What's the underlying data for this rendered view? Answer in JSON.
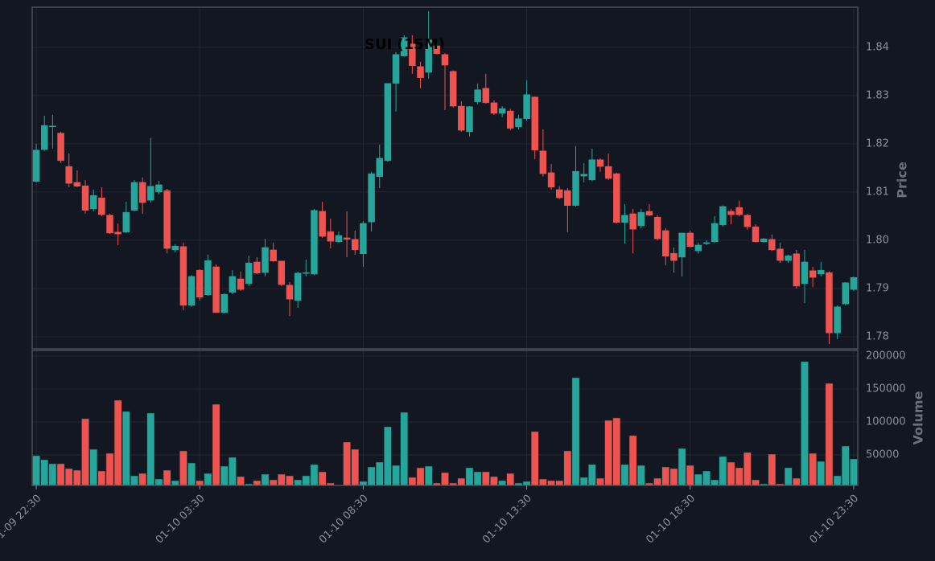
{
  "chart_data": {
    "type": "candlestick",
    "title": "SUI (15M)",
    "ylabel": "Price",
    "categories": [
      "01-09 22:30",
      null,
      null,
      null,
      null,
      null,
      null,
      null,
      null,
      null,
      null,
      null,
      null,
      null,
      null,
      null,
      null,
      null,
      null,
      null,
      "01-10 03:30",
      null,
      null,
      null,
      null,
      null,
      null,
      null,
      null,
      null,
      null,
      null,
      null,
      null,
      null,
      null,
      null,
      null,
      null,
      null,
      "01-10 08:30",
      null,
      null,
      null,
      null,
      null,
      null,
      null,
      null,
      null,
      null,
      null,
      null,
      null,
      null,
      null,
      null,
      null,
      null,
      null,
      "01-10 13:30",
      null,
      null,
      null,
      null,
      null,
      null,
      null,
      null,
      null,
      null,
      null,
      null,
      null,
      null,
      null,
      null,
      null,
      null,
      null,
      "01-10 18:30",
      null,
      null,
      null,
      null,
      null,
      null,
      null,
      null,
      null,
      null,
      null,
      null,
      null,
      null,
      null,
      null,
      null,
      null,
      null,
      "01-10 23:30"
    ],
    "up_color": "#26a69a",
    "down_color": "#ef5350",
    "grid": true,
    "open": [
      1.8122,
      1.8188,
      1.8235,
      1.8222,
      1.8153,
      1.812,
      1.8113,
      1.8065,
      1.8088,
      1.8052,
      1.8017,
      1.8017,
      1.8062,
      1.812,
      1.8083,
      1.81,
      1.8103,
      1.798,
      1.7987,
      1.7865,
      1.7938,
      1.7887,
      1.7945,
      1.785,
      1.7892,
      1.792,
      1.791,
      1.7955,
      1.7933,
      1.798,
      1.7957,
      1.7907,
      1.7875,
      1.7932,
      1.793,
      1.806,
      1.8018,
      1.7997,
      1.8005,
      1.8002,
      1.7972,
      1.8038,
      1.8132,
      1.8165,
      1.8325,
      1.8382,
      1.8407,
      1.836,
      1.8348,
      1.8403,
      1.8385,
      1.835,
      1.8278,
      1.8225,
      1.8287,
      1.8315,
      1.8285,
      1.8263,
      1.8268,
      1.8235,
      1.8252,
      1.8297,
      1.8185,
      1.814,
      1.8105,
      1.8103,
      1.8072,
      1.8133,
      1.8125,
      1.8167,
      1.8153,
      1.8138,
      1.8037,
      1.8055,
      1.803,
      1.806,
      1.8048,
      1.802,
      1.7973,
      1.7965,
      1.8015,
      1.7978,
      1.7993,
      1.7997,
      1.8032,
      1.806,
      1.8068,
      1.8052,
      1.8028,
      1.7997,
      1.8002,
      1.7982,
      1.7958,
      1.7972,
      1.791,
      1.7937,
      1.793,
      1.7933,
      1.7808,
      1.7868,
      1.7898
    ],
    "high": [
      1.82,
      1.8258,
      1.826,
      1.8225,
      1.818,
      1.8145,
      1.8125,
      1.8105,
      1.811,
      1.8055,
      1.8035,
      1.808,
      1.8125,
      1.813,
      1.8212,
      1.8123,
      1.8107,
      1.7992,
      1.7995,
      1.7928,
      1.794,
      1.797,
      1.795,
      1.789,
      1.7938,
      1.7935,
      1.7968,
      1.7965,
      1.8003,
      1.7995,
      1.7957,
      1.7913,
      1.7935,
      1.796,
      1.8065,
      1.808,
      1.8045,
      1.8018,
      1.806,
      1.802,
      1.804,
      1.8142,
      1.8198,
      1.8325,
      1.839,
      1.8425,
      1.8425,
      1.837,
      1.8475,
      1.8408,
      1.8388,
      1.8352,
      1.8288,
      1.8278,
      1.8325,
      1.8345,
      1.829,
      1.8278,
      1.8272,
      1.826,
      1.8332,
      1.8298,
      1.823,
      1.8158,
      1.8112,
      1.8108,
      1.8195,
      1.816,
      1.819,
      1.817,
      1.818,
      1.814,
      1.8075,
      1.8065,
      1.8065,
      1.8075,
      1.8052,
      1.8025,
      1.7985,
      1.8015,
      1.802,
      1.7995,
      1.8,
      1.805,
      1.8072,
      1.8065,
      1.8082,
      1.8055,
      1.8033,
      1.8005,
      1.8012,
      1.7995,
      1.797,
      1.798,
      1.798,
      1.7945,
      1.7955,
      1.7935,
      1.7865,
      1.7913,
      1.7925
    ],
    "low": [
      1.812,
      1.8185,
      1.819,
      1.816,
      1.811,
      1.811,
      1.8055,
      1.806,
      1.805,
      1.8013,
      1.799,
      1.8015,
      1.806,
      1.8055,
      1.8078,
      1.8095,
      1.7973,
      1.7975,
      1.7855,
      1.7862,
      1.7875,
      1.7885,
      1.785,
      1.7848,
      1.7888,
      1.7895,
      1.7905,
      1.793,
      1.7925,
      1.7955,
      1.7905,
      1.7843,
      1.786,
      1.7925,
      1.7928,
      1.8005,
      1.7983,
      1.7995,
      1.7965,
      1.797,
      1.7945,
      1.8018,
      1.8108,
      1.8163,
      1.8267,
      1.838,
      1.8345,
      1.8315,
      1.8335,
      1.8385,
      1.827,
      1.8275,
      1.8225,
      1.8215,
      1.8282,
      1.8283,
      1.826,
      1.8255,
      1.8228,
      1.823,
      1.8248,
      1.8168,
      1.8132,
      1.8105,
      1.8085,
      1.8017,
      1.807,
      1.812,
      1.8122,
      1.8142,
      1.8125,
      1.8035,
      1.7993,
      1.7973,
      1.8025,
      1.805,
      1.8,
      1.7948,
      1.7933,
      1.7925,
      1.7985,
      1.7972,
      1.799,
      1.7995,
      1.8028,
      1.8033,
      1.805,
      1.8022,
      1.7995,
      1.7995,
      1.7978,
      1.7953,
      1.7953,
      1.79,
      1.787,
      1.7903,
      1.7925,
      1.7785,
      1.7795,
      1.7865,
      1.7895
    ],
    "close": [
      1.8187,
      1.8238,
      1.8237,
      1.8165,
      1.8118,
      1.8112,
      1.8062,
      1.8093,
      1.8053,
      1.8015,
      1.8013,
      1.8058,
      1.812,
      1.8078,
      1.8112,
      1.8115,
      1.7983,
      1.7988,
      1.7865,
      1.7925,
      1.7882,
      1.7958,
      1.785,
      1.7888,
      1.7925,
      1.7898,
      1.7953,
      1.7932,
      1.7985,
      1.7957,
      1.7908,
      1.7878,
      1.7932,
      1.7933,
      1.8062,
      1.8008,
      1.7998,
      1.801,
      1.8002,
      1.798,
      1.8035,
      1.8138,
      1.817,
      1.8325,
      1.8385,
      1.842,
      1.8362,
      1.8337,
      1.8415,
      1.8387,
      1.8363,
      1.8278,
      1.8228,
      1.8277,
      1.8312,
      1.8285,
      1.8263,
      1.8273,
      1.8232,
      1.8252,
      1.8302,
      1.8187,
      1.8138,
      1.811,
      1.8088,
      1.8072,
      1.8143,
      1.8137,
      1.8167,
      1.8153,
      1.8128,
      1.8037,
      1.8052,
      1.8023,
      1.8058,
      1.8052,
      1.8003,
      1.7967,
      1.7958,
      1.8015,
      1.7987,
      1.799,
      1.7995,
      1.8035,
      1.807,
      1.8053,
      1.8053,
      1.8028,
      1.7997,
      1.8003,
      1.798,
      1.7958,
      1.7968,
      1.7905,
      1.7955,
      1.7923,
      1.7938,
      1.7808,
      1.7862,
      1.7912,
      1.7923
    ],
    "ylim": [
      1.7775,
      1.8483
    ],
    "yticks": [
      1.78,
      1.79,
      {
        "value": 1.8,
        "label": "1.80"
      },
      1.81,
      1.82,
      1.83,
      1.84
    ],
    "volume": {
      "ylabel": "Volume",
      "ylim": [
        3700,
        208500
      ],
      "yticks": [
        50000,
        100000,
        150000,
        200000
      ],
      "values": [
        48800,
        42700,
        36600,
        36600,
        29300,
        26800,
        104900,
        58500,
        25600,
        52400,
        132900,
        115900,
        18300,
        21900,
        113400,
        13400,
        26800,
        11000,
        56100,
        37800,
        11000,
        21900,
        126800,
        32900,
        46300,
        17100,
        6100,
        11000,
        20700,
        12200,
        20700,
        18300,
        12200,
        18300,
        35400,
        24400,
        7300,
        3800,
        69500,
        58500,
        9800,
        31700,
        39000,
        92700,
        34100,
        114600,
        15900,
        30500,
        32900,
        7300,
        23200,
        7300,
        14600,
        30500,
        24400,
        24400,
        17100,
        11000,
        21900,
        7300,
        9800,
        85400,
        13400,
        11000,
        11000,
        56100,
        167100,
        15900,
        35400,
        14600,
        102400,
        106100,
        35400,
        79300,
        34100,
        7300,
        14600,
        31700,
        29300,
        59800,
        34100,
        20700,
        25600,
        12200,
        47600,
        39000,
        30500,
        53700,
        12200,
        6100,
        51200,
        6100,
        30500,
        14600,
        191500,
        52400,
        40200,
        158500,
        18300,
        63400,
        43900
      ]
    }
  }
}
